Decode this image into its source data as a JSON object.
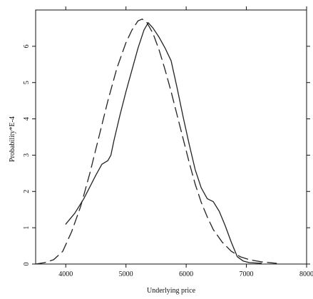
{
  "chart_data": {
    "type": "line",
    "title": "",
    "xlabel": "Underlying price",
    "ylabel": "Probability*E-4",
    "xlim": [
      3500,
      8000
    ],
    "ylim": [
      0,
      7
    ],
    "x_ticks": [
      {
        "value": 4000,
        "label": "4000"
      },
      {
        "value": 5000,
        "label": "5000"
      },
      {
        "value": 6000,
        "label": "6000"
      },
      {
        "value": 7000,
        "label": "7000"
      },
      {
        "value": 8000,
        "label": "8000"
      }
    ],
    "y_ticks": [
      {
        "value": 0,
        "label": "0"
      },
      {
        "value": 1,
        "label": "1"
      },
      {
        "value": 2,
        "label": "2"
      },
      {
        "value": 3,
        "label": "3"
      },
      {
        "value": 4,
        "label": "4"
      },
      {
        "value": 5,
        "label": "5"
      },
      {
        "value": 6,
        "label": "6"
      }
    ],
    "grid": false,
    "series": [
      {
        "style": "solid",
        "color": "#222222",
        "points": [
          [
            4000,
            1.1
          ],
          [
            4150,
            1.4
          ],
          [
            4300,
            1.8
          ],
          [
            4500,
            2.45
          ],
          [
            4600,
            2.75
          ],
          [
            4700,
            2.85
          ],
          [
            4750,
            3.0
          ],
          [
            4800,
            3.4
          ],
          [
            4900,
            4.1
          ],
          [
            5000,
            4.75
          ],
          [
            5100,
            5.35
          ],
          [
            5200,
            5.95
          ],
          [
            5300,
            6.45
          ],
          [
            5370,
            6.65
          ],
          [
            5450,
            6.5
          ],
          [
            5550,
            6.25
          ],
          [
            5650,
            5.95
          ],
          [
            5750,
            5.6
          ],
          [
            5850,
            4.85
          ],
          [
            5950,
            4.05
          ],
          [
            6050,
            3.3
          ],
          [
            6150,
            2.6
          ],
          [
            6250,
            2.1
          ],
          [
            6350,
            1.8
          ],
          [
            6450,
            1.72
          ],
          [
            6550,
            1.45
          ],
          [
            6650,
            1.05
          ],
          [
            6750,
            0.6
          ],
          [
            6850,
            0.2
          ],
          [
            6950,
            0.08
          ],
          [
            7050,
            0.04
          ],
          [
            7250,
            0.02
          ]
        ]
      },
      {
        "style": "dashed",
        "color": "#222222",
        "points": [
          [
            3500,
            0.0
          ],
          [
            3650,
            0.04
          ],
          [
            3800,
            0.12
          ],
          [
            3950,
            0.35
          ],
          [
            4100,
            0.9
          ],
          [
            4250,
            1.6
          ],
          [
            4400,
            2.5
          ],
          [
            4550,
            3.5
          ],
          [
            4700,
            4.5
          ],
          [
            4850,
            5.4
          ],
          [
            5000,
            6.1
          ],
          [
            5100,
            6.45
          ],
          [
            5200,
            6.7
          ],
          [
            5270,
            6.75
          ],
          [
            5350,
            6.65
          ],
          [
            5450,
            6.35
          ],
          [
            5550,
            5.9
          ],
          [
            5650,
            5.35
          ],
          [
            5750,
            4.75
          ],
          [
            5850,
            4.1
          ],
          [
            5950,
            3.45
          ],
          [
            6050,
            2.8
          ],
          [
            6150,
            2.2
          ],
          [
            6250,
            1.7
          ],
          [
            6350,
            1.3
          ],
          [
            6450,
            0.95
          ],
          [
            6600,
            0.6
          ],
          [
            6750,
            0.35
          ],
          [
            6900,
            0.2
          ],
          [
            7050,
            0.12
          ],
          [
            7250,
            0.06
          ],
          [
            7500,
            0.02
          ]
        ]
      }
    ]
  }
}
